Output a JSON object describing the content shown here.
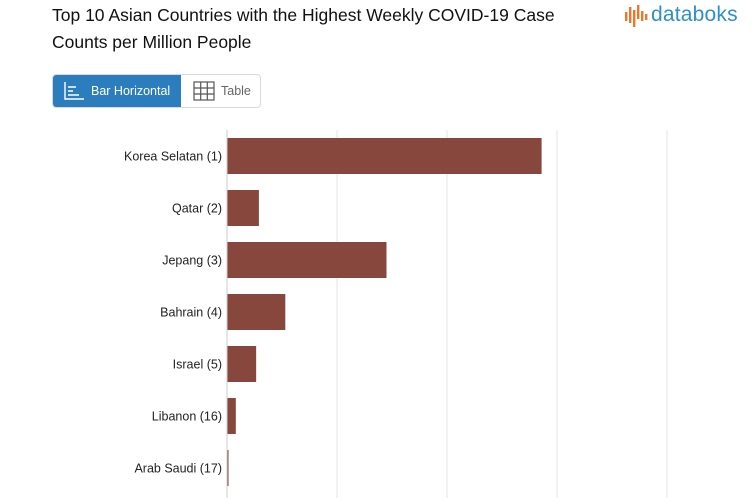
{
  "header": {
    "title": "Top 10 Asian Countries with the Highest Weekly COVID-19 Case Counts per Million People",
    "logo_text": "databoks"
  },
  "view_toggle": {
    "bar_label": "Bar Horizontal",
    "table_label": "Table",
    "selected": "Bar Horizontal"
  },
  "colors": {
    "bar": "#87473c",
    "accent": "#2b7dbd",
    "logo_blue": "#2d8fcb",
    "logo_orange": "#e8782a",
    "grid": "#e3e3e3"
  },
  "chart_data": {
    "type": "bar",
    "orientation": "horizontal",
    "title": "Top 10 Asian Countries with the Highest Weekly COVID-19 Case Counts per Million People",
    "categories": [
      "Korea Selatan (1)",
      "Qatar (2)",
      "Jepang (3)",
      "Bahrain (4)",
      "Israel (5)",
      "Libanon (16)",
      "Arab Saudi (17)"
    ],
    "values": [
      2860,
      290,
      1450,
      530,
      265,
      80,
      12
    ],
    "xlim": [
      0,
      4000
    ],
    "xlabel": "",
    "ylabel": "",
    "grid": true,
    "legend": "none"
  }
}
